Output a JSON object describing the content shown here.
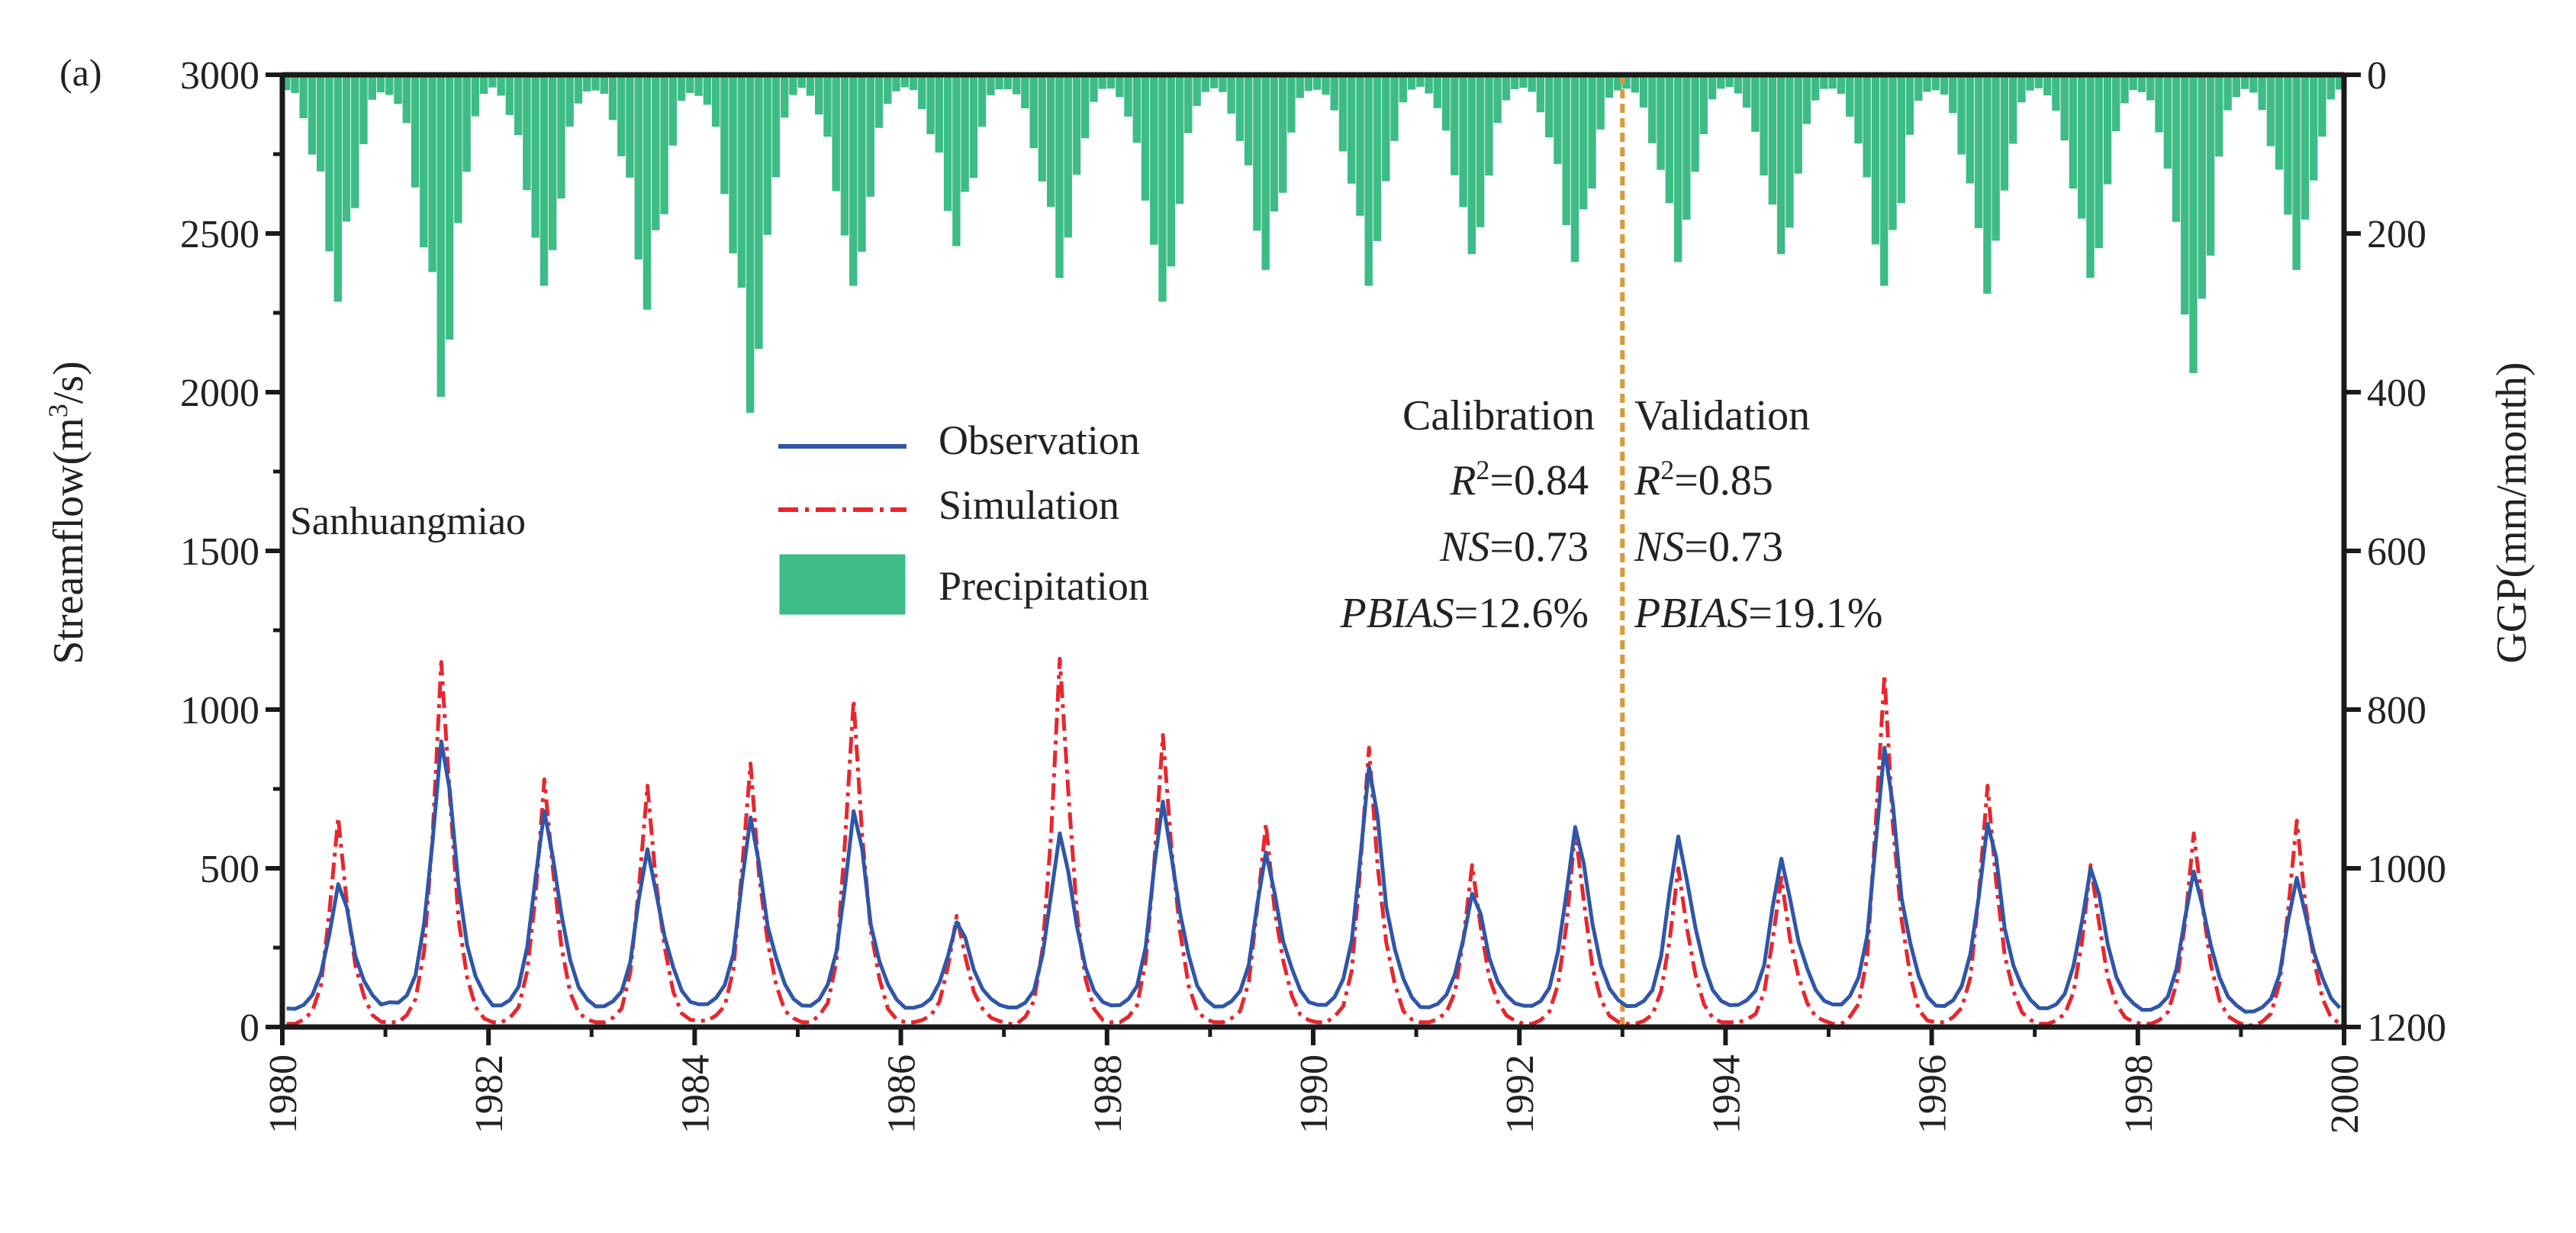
{
  "panel_label": "(a)",
  "station": "Sanhuangmiao",
  "colors": {
    "observation": "#2f56a8",
    "simulation": "#e8262e",
    "precipitation": "#3dbc86",
    "divider": "#d99a3b",
    "axis": "#1a1a1a",
    "text": "#222222"
  },
  "chart_data": {
    "type": "line",
    "xlim": [
      1980,
      2000
    ],
    "x_ticks": [
      "1980",
      "1982",
      "1984",
      "1986",
      "1988",
      "1990",
      "1992",
      "1994",
      "1996",
      "1998",
      "2000"
    ],
    "left_axis": {
      "label_main": "Streamflow(m",
      "label_sup": "3",
      "label_tail": "/s)",
      "ylim": [
        0,
        3000
      ],
      "ticks": [
        "0",
        "500",
        "1000",
        "1500",
        "2000",
        "2500",
        "3000"
      ]
    },
    "right_axis": {
      "label": "GGP(mm/month)",
      "ylim": [
        0,
        1200
      ],
      "inverted": true,
      "ticks": [
        "0",
        "200",
        "400",
        "600",
        "800",
        "1000",
        "1200"
      ]
    },
    "legend": [
      "Observation",
      "Simulation",
      "Precipitation"
    ],
    "divider_year": 1993,
    "periods": [
      {
        "name": "Calibration",
        "r2_label": "R",
        "r2_sup": "2",
        "r2_value": "=0.84",
        "ns_label": "NS",
        "ns_value": "=0.73",
        "pbias_label": "PBIAS",
        "pbias_value": "=12.6%"
      },
      {
        "name": "Validation",
        "r2_label": "R",
        "r2_sup": "2",
        "r2_value": "=0.85",
        "ns_label": "NS",
        "ns_value": "=0.73",
        "pbias_label": "PBIAS",
        "pbias_value": "=19.1%"
      }
    ],
    "annual_peaks": {
      "years": [
        1980,
        1981,
        1982,
        1983,
        1984,
        1985,
        1986,
        1987,
        1988,
        1989,
        1990,
        1991,
        1992,
        1993,
        1994,
        1995,
        1996,
        1997,
        1998,
        1999
      ],
      "observation": [
        450,
        900,
        680,
        560,
        660,
        680,
        330,
        610,
        710,
        550,
        820,
        420,
        630,
        600,
        530,
        880,
        640,
        500,
        490,
        470
      ],
      "simulation": [
        660,
        1150,
        780,
        760,
        830,
        1030,
        350,
        1160,
        920,
        640,
        880,
        510,
        620,
        500,
        470,
        1110,
        760,
        510,
        610,
        650
      ],
      "precip_max": [
        280,
        400,
        260,
        290,
        420,
        260,
        210,
        250,
        280,
        240,
        260,
        220,
        230,
        230,
        220,
        260,
        270,
        250,
        370,
        240
      ]
    },
    "annual_baseflow": {
      "observation": [
        50,
        60,
        55,
        55,
        60,
        55,
        55,
        50,
        55,
        55,
        55,
        55,
        55,
        55,
        60,
        55,
        55,
        50,
        45,
        40
      ],
      "simulation": [
        10,
        15,
        15,
        15,
        20,
        15,
        15,
        10,
        15,
        15,
        15,
        15,
        10,
        10,
        15,
        10,
        15,
        10,
        10,
        5
      ]
    }
  }
}
